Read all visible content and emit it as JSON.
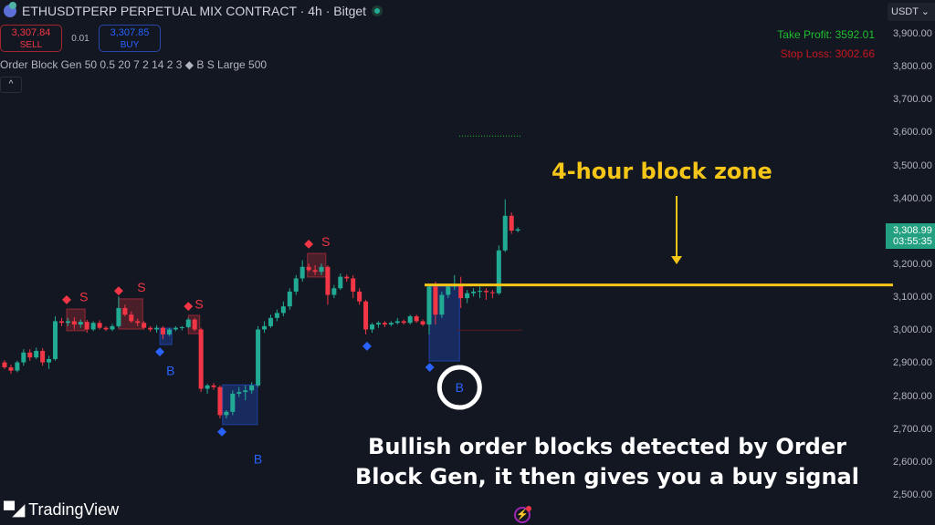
{
  "header": {
    "title": "ETHUSDTPERP PERPETUAL MIX CONTRACT · 4h · Bitget",
    "symbol_icon": "ethereum-icon",
    "status": "market-open-dot"
  },
  "trade": {
    "sell_price": "3,307.84",
    "sell_label": "SELL",
    "spread": "0.01",
    "buy_price": "3,307.85",
    "buy_label": "BUY"
  },
  "indicator": {
    "label": "Order Block Gen 50 0.5 20 7 2 14 2 3 ◆ B S Large 500",
    "collapse_glyph": "^"
  },
  "levels": {
    "take_profit": "Take Profit: 3592.01",
    "stop_loss": "Stop Loss: 3002.66",
    "take_profit_color": "#1fbf2d",
    "stop_loss_color": "#c8171f"
  },
  "price_axis": {
    "currency": "USDT ⌄",
    "last_price": "3,308.99",
    "countdown": "03:55:35"
  },
  "annotation": {
    "title": "4-hour block zone",
    "caption_line1": "Bullish order blocks detected by Order",
    "caption_line2": "Block Gen, it then gives you a buy signal",
    "highlight_color": "#f5c518"
  },
  "footer": {
    "brand": "TradingView",
    "brand_mark": "TV"
  },
  "colors": {
    "up": "#22ab94",
    "down": "#f23645",
    "bear_block": "#f23645",
    "bull_block": "#2962ff",
    "background": "#131722"
  },
  "chart_data": {
    "type": "candlestick",
    "ylim": [
      2450,
      3930
    ],
    "y_ticks": [
      "3,900.00",
      "3,800.00",
      "3,700.00",
      "3,600.00",
      "3,500.00",
      "3,400.00",
      "3,300.00",
      "3,200.00",
      "3,100.00",
      "3,000.00",
      "2,900.00",
      "2,800.00",
      "2,700.00",
      "2,600.00",
      "2,500.00"
    ],
    "y_tick_values": [
      3900,
      3800,
      3700,
      3600,
      3500,
      3400,
      3300,
      3200,
      3100,
      3000,
      2900,
      2800,
      2700,
      2600,
      2500
    ],
    "candles": [
      [
        2905,
        2912,
        2885,
        2890
      ],
      [
        2890,
        2898,
        2870,
        2880
      ],
      [
        2880,
        2910,
        2875,
        2905
      ],
      [
        2905,
        2945,
        2895,
        2935
      ],
      [
        2935,
        2945,
        2910,
        2920
      ],
      [
        2920,
        2950,
        2915,
        2940
      ],
      [
        2940,
        2948,
        2895,
        2905
      ],
      [
        2905,
        2925,
        2885,
        2915
      ],
      [
        2915,
        3045,
        2910,
        3030
      ],
      [
        3030,
        3040,
        3015,
        3025
      ],
      [
        3025,
        3040,
        3015,
        3030
      ],
      [
        3030,
        3042,
        3005,
        3020
      ],
      [
        3020,
        3035,
        3010,
        3028
      ],
      [
        3028,
        3034,
        2995,
        3005
      ],
      [
        3005,
        3030,
        3000,
        3025
      ],
      [
        3025,
        3033,
        3005,
        3010
      ],
      [
        3010,
        3015,
        3000,
        3005
      ],
      [
        3005,
        3022,
        3000,
        3015
      ],
      [
        3015,
        3105,
        3010,
        3070
      ],
      [
        3070,
        3080,
        3045,
        3050
      ],
      [
        3050,
        3060,
        3025,
        3030
      ],
      [
        3030,
        3038,
        3015,
        3025
      ],
      [
        3025,
        3030,
        3005,
        3010
      ],
      [
        3010,
        3015,
        2998,
        3005
      ],
      [
        3005,
        3018,
        2995,
        3010
      ],
      [
        3010,
        3015,
        2975,
        2990
      ],
      [
        2990,
        3010,
        2985,
        3005
      ],
      [
        3005,
        3015,
        3000,
        3010
      ],
      [
        3010,
        3015,
        3002,
        3012
      ],
      [
        3012,
        3040,
        3008,
        3035
      ],
      [
        3035,
        3040,
        3000,
        3005
      ],
      [
        3005,
        3010,
        2815,
        2825
      ],
      [
        2825,
        2840,
        2810,
        2835
      ],
      [
        2835,
        2842,
        2822,
        2830
      ],
      [
        2830,
        2835,
        2735,
        2745
      ],
      [
        2745,
        2760,
        2735,
        2755
      ],
      [
        2755,
        2820,
        2745,
        2810
      ],
      [
        2810,
        2830,
        2800,
        2815
      ],
      [
        2815,
        2835,
        2790,
        2820
      ],
      [
        2820,
        2845,
        2810,
        2835
      ],
      [
        2835,
        3015,
        2830,
        3005
      ],
      [
        3005,
        3030,
        2995,
        3015
      ],
      [
        3015,
        3050,
        3010,
        3040
      ],
      [
        3040,
        3065,
        3030,
        3055
      ],
      [
        3055,
        3090,
        3045,
        3075
      ],
      [
        3075,
        3130,
        3065,
        3120
      ],
      [
        3120,
        3170,
        3110,
        3160
      ],
      [
        3160,
        3215,
        3150,
        3195
      ],
      [
        3195,
        3205,
        3180,
        3185
      ],
      [
        3185,
        3200,
        3170,
        3180
      ],
      [
        3180,
        3205,
        3170,
        3195
      ],
      [
        3195,
        3200,
        3080,
        3110
      ],
      [
        3110,
        3140,
        3100,
        3130
      ],
      [
        3130,
        3175,
        3125,
        3165
      ],
      [
        3165,
        3172,
        3150,
        3160
      ],
      [
        3160,
        3170,
        3100,
        3120
      ],
      [
        3120,
        3130,
        3080,
        3090
      ],
      [
        3090,
        3095,
        2990,
        3005
      ],
      [
        3005,
        3025,
        2995,
        3020
      ],
      [
        3020,
        3030,
        3010,
        3025
      ],
      [
        3025,
        3030,
        3012,
        3020
      ],
      [
        3020,
        3030,
        3015,
        3025
      ],
      [
        3025,
        3040,
        3020,
        3030
      ],
      [
        3030,
        3035,
        3020,
        3025
      ],
      [
        3025,
        3050,
        3020,
        3045
      ],
      [
        3045,
        3050,
        3025,
        3030
      ],
      [
        3030,
        3035,
        3015,
        3020
      ],
      [
        3020,
        3145,
        2990,
        3135
      ],
      [
        3135,
        3150,
        3020,
        3050
      ],
      [
        3050,
        3120,
        3040,
        3110
      ],
      [
        3110,
        3140,
        3100,
        3135
      ],
      [
        3135,
        3170,
        3125,
        3140
      ],
      [
        3140,
        3165,
        3070,
        3100
      ],
      [
        3100,
        3125,
        3085,
        3115
      ],
      [
        3115,
        3130,
        3105,
        3120
      ],
      [
        3120,
        3135,
        3100,
        3122
      ],
      [
        3122,
        3130,
        3095,
        3118
      ],
      [
        3118,
        3125,
        3100,
        3115
      ],
      [
        3115,
        3260,
        3110,
        3245
      ],
      [
        3245,
        3400,
        3240,
        3350
      ],
      [
        3350,
        3360,
        3295,
        3305
      ],
      [
        3305,
        3315,
        3300,
        3309
      ]
    ],
    "candle_format": [
      "open",
      "high",
      "low",
      "close"
    ],
    "order_blocks": [
      {
        "type": "bearish",
        "start": 9.8,
        "end": 12.7,
        "top": 3067,
        "bottom": 3001
      },
      {
        "type": "bearish",
        "start": 18,
        "end": 21.8,
        "top": 3098,
        "bottom": 3006
      },
      {
        "type": "bearish",
        "start": 29,
        "end": 30.8,
        "top": 3048,
        "bottom": 2992
      },
      {
        "type": "bearish",
        "start": 47.8,
        "end": 50.7,
        "top": 3236,
        "bottom": 3164
      },
      {
        "type": "bullish",
        "start": 24.5,
        "end": 26.4,
        "top": 3009,
        "bottom": 2959
      },
      {
        "type": "bullish",
        "start": 34.4,
        "end": 39.9,
        "top": 2837,
        "bottom": 2716
      },
      {
        "type": "bullish",
        "start": 67,
        "end": 71.8,
        "top": 3136,
        "bottom": 2909
      }
    ],
    "signals": [
      {
        "label": "S",
        "index": 9.8,
        "price": 3095,
        "label_index": 12.5,
        "label_price": 3105
      },
      {
        "label": "S",
        "index": 18,
        "price": 3122,
        "label_index": 21.6,
        "label_price": 3133
      },
      {
        "label": "S",
        "index": 29,
        "price": 3075,
        "label_index": 30.7,
        "label_price": 3083
      },
      {
        "label": "S",
        "index": 48,
        "price": 3264,
        "label_index": 50.7,
        "label_price": 3272
      },
      {
        "label": "B",
        "index": 24.5,
        "price": 2937,
        "label_index": 26.2,
        "label_price": 2880
      },
      {
        "label": "B",
        "index": 34.3,
        "price": 2694,
        "label_index": 40,
        "label_price": 2612
      },
      {
        "label": "B",
        "index": 57.2,
        "price": 2954,
        "label_index": 57.2,
        "label_price": 2954,
        "hidden_label": true
      },
      {
        "label": "B",
        "index": 67.1,
        "price": 2890,
        "label_index": 71.8,
        "label_price": 2829,
        "circled": true
      }
    ],
    "block_zone_price": 3140,
    "take_profit_price": 3592.01,
    "stop_loss_price": 3002.66
  }
}
